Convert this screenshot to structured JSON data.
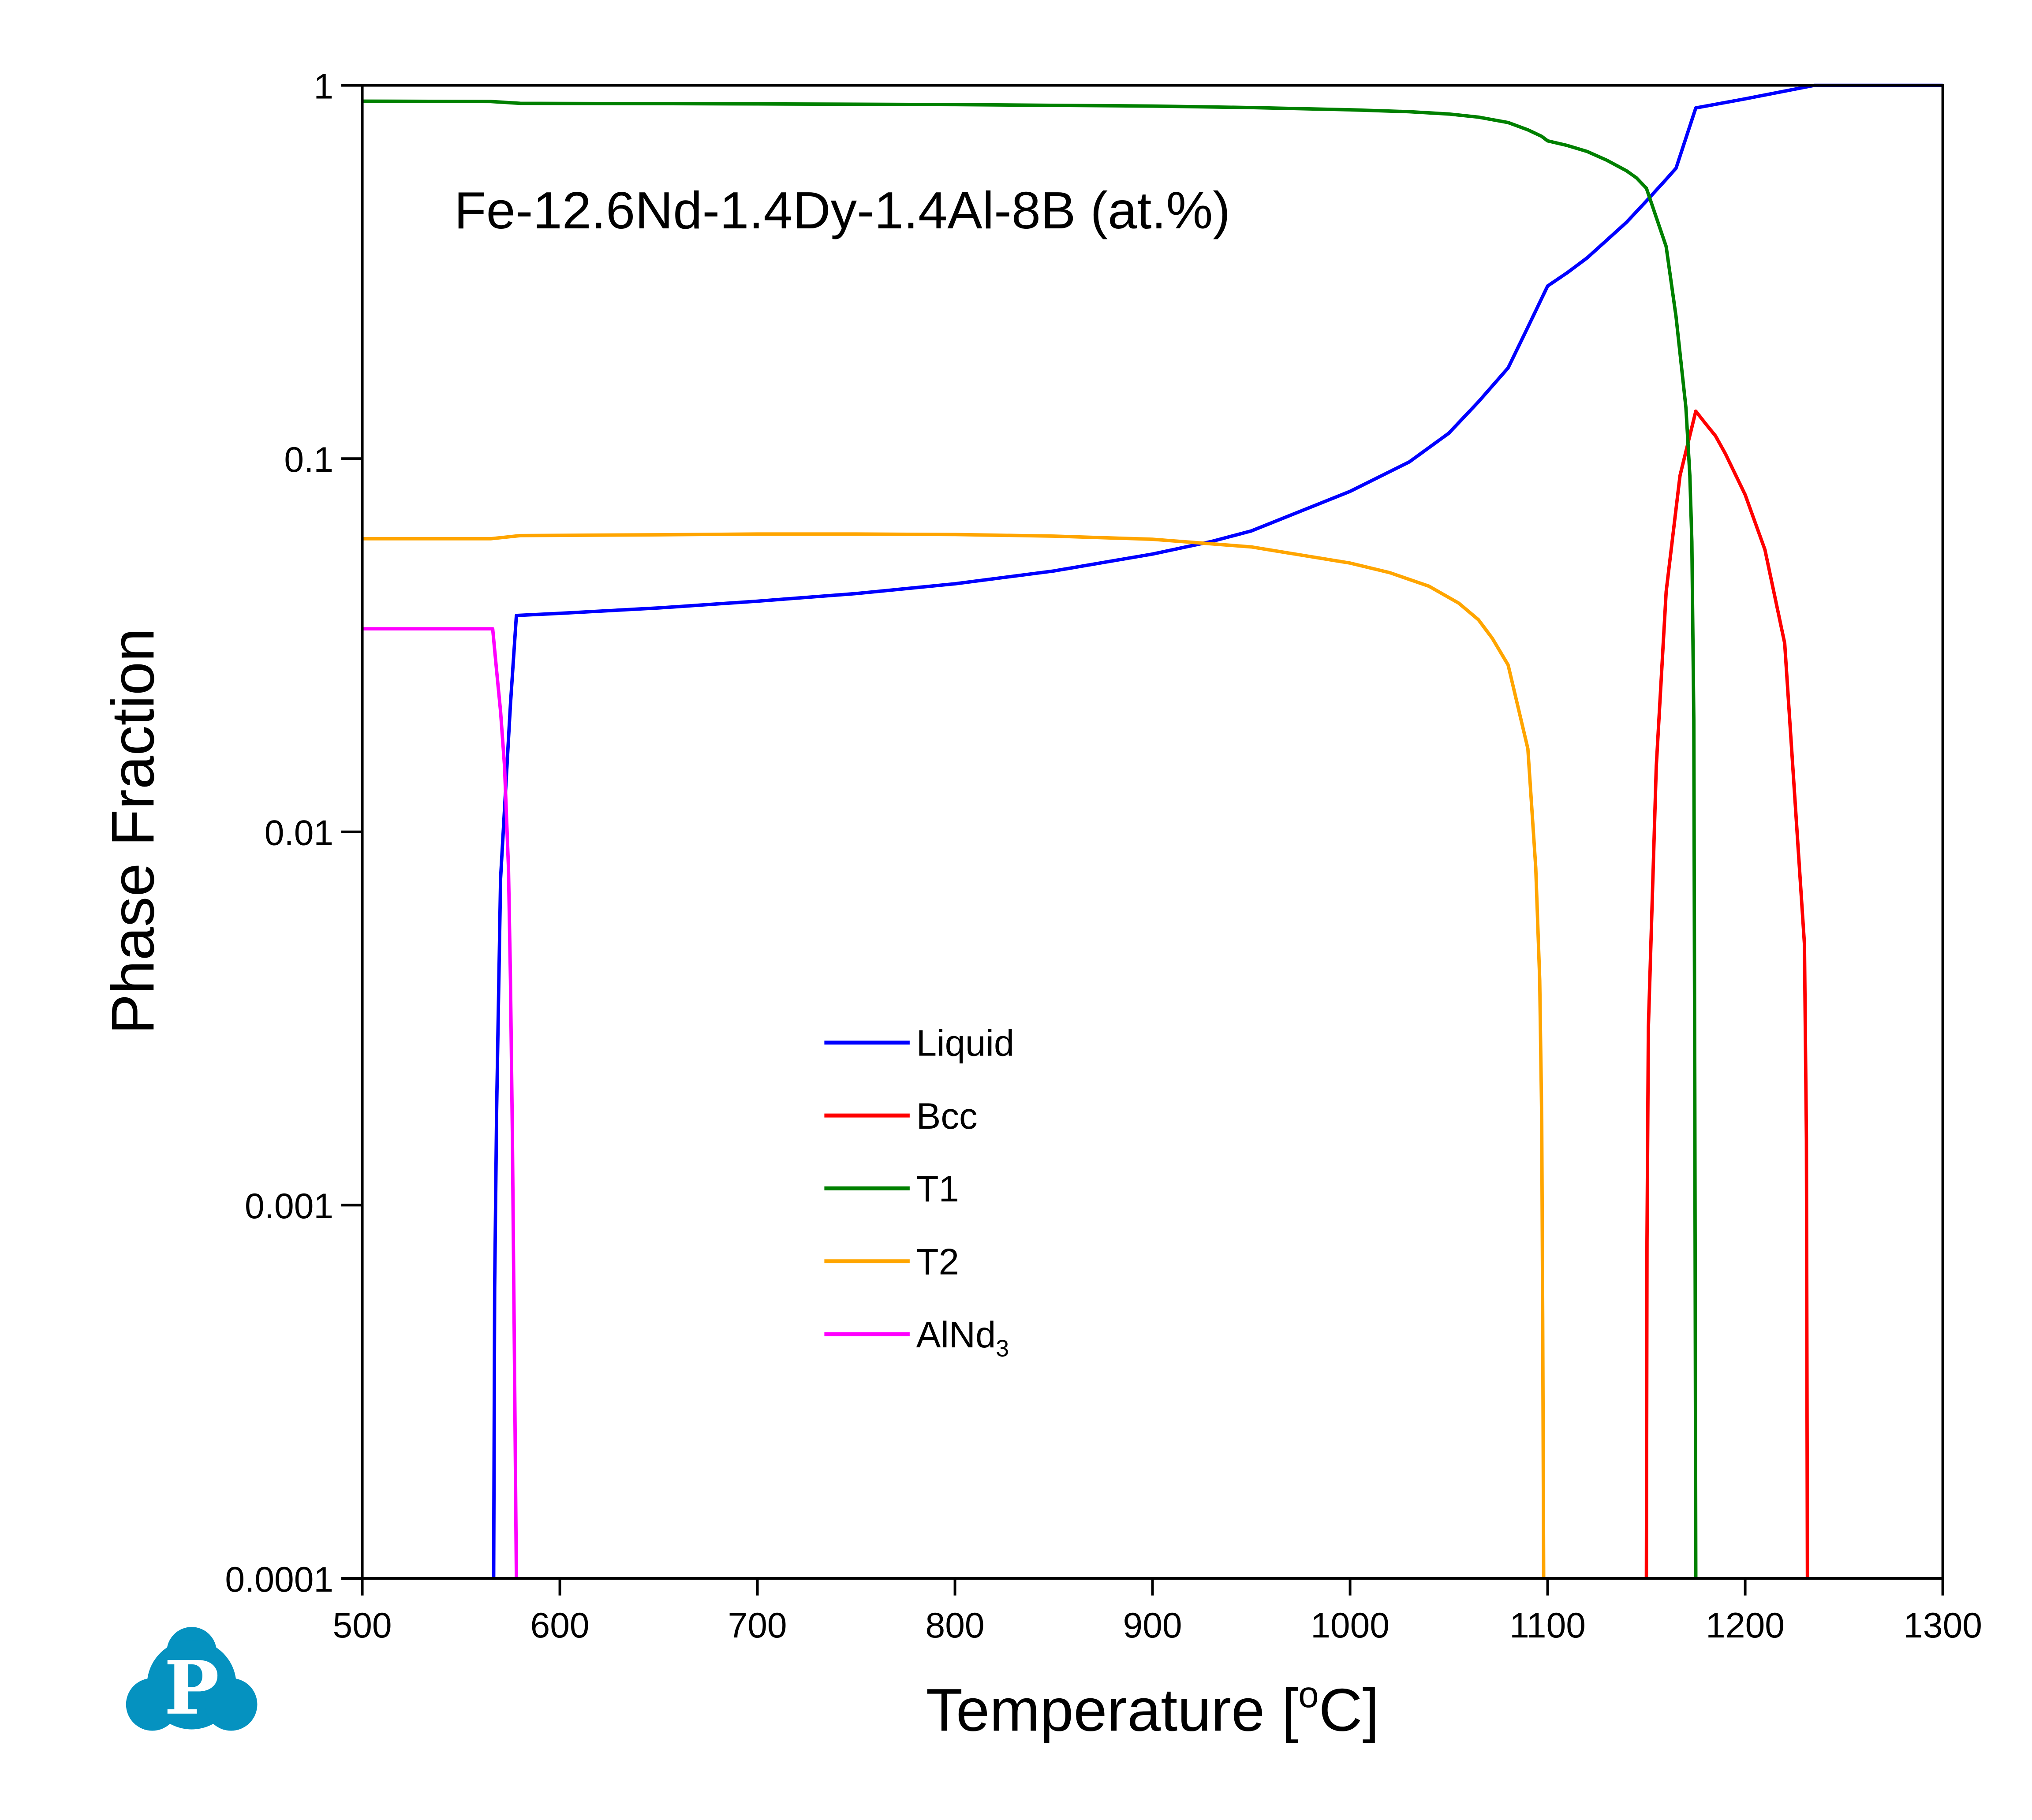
{
  "chart_data": {
    "type": "line",
    "title": "",
    "annotation": "Fe-12.6Nd-1.4Dy-1.4Al-8B (at.%)",
    "xlabel": "Temperature [oC]",
    "xlabel_parts": {
      "pre": "Temperature [",
      "sup": "o",
      "post": "C]"
    },
    "ylabel": "Phase Fraction",
    "xlim": [
      500,
      1300
    ],
    "ylim": [
      0.0001,
      1
    ],
    "yscale": "log",
    "grid": false,
    "legend_position": "center-left",
    "x_ticks": [
      {
        "value": 500,
        "label": "500"
      },
      {
        "value": 600,
        "label": "600"
      },
      {
        "value": 700,
        "label": "700"
      },
      {
        "value": 800,
        "label": "800"
      },
      {
        "value": 900,
        "label": "900"
      },
      {
        "value": 1000,
        "label": "1000"
      },
      {
        "value": 1100,
        "label": "1100"
      },
      {
        "value": 1200,
        "label": "1200"
      },
      {
        "value": 1300,
        "label": "1300"
      }
    ],
    "y_ticks": [
      {
        "value": 1,
        "label": "1"
      },
      {
        "value": 0.1,
        "label": "0.1"
      },
      {
        "value": 0.01,
        "label": "0.01"
      },
      {
        "value": 0.001,
        "label": "0.001"
      },
      {
        "value": 0.0001,
        "label": "0.0001"
      }
    ],
    "series": [
      {
        "name": "Liquid",
        "label_main": "Liquid",
        "label_sub": "",
        "color": "#0000ff",
        "x": [
          566.5,
          567,
          568,
          570,
          575,
          578,
          600,
          650,
          700,
          750,
          800,
          850,
          900,
          930,
          950,
          1000,
          1030,
          1050,
          1065,
          1080,
          1090,
          1100,
          1110,
          1120,
          1130,
          1140,
          1150,
          1160,
          1165,
          1175,
          1200,
          1220,
          1235,
          1260,
          1300
        ],
        "y": [
          0.0001,
          0.0006,
          0.0018,
          0.0075,
          0.022,
          0.038,
          0.0385,
          0.0398,
          0.0415,
          0.0435,
          0.0462,
          0.05,
          0.0555,
          0.06,
          0.064,
          0.0817,
          0.098,
          0.117,
          0.142,
          0.175,
          0.225,
          0.29,
          0.315,
          0.345,
          0.385,
          0.43,
          0.49,
          0.56,
          0.6,
          0.87,
          0.92,
          0.965,
          1.0,
          1.0,
          1.0
        ]
      },
      {
        "name": "Bcc",
        "label_main": "Bcc",
        "label_sub": "",
        "color": "#ff0000",
        "x": [
          1150,
          1150.3,
          1151,
          1155,
          1160,
          1167,
          1175,
          1180,
          1185,
          1190,
          1200,
          1210,
          1220,
          1230,
          1231,
          1231.5
        ],
        "y": [
          0.0001,
          0.0008,
          0.003,
          0.015,
          0.044,
          0.09,
          0.134,
          0.124,
          0.115,
          0.103,
          0.08,
          0.057,
          0.032,
          0.005,
          0.0015,
          0.0001
        ]
      },
      {
        "name": "T1",
        "label_main": "T1",
        "label_sub": "",
        "color": "#008000",
        "x": [
          500,
          565,
          580,
          700,
          800,
          900,
          950,
          1000,
          1030,
          1050,
          1065,
          1080,
          1090,
          1097,
          1100,
          1110,
          1120,
          1130,
          1140,
          1145,
          1150,
          1160,
          1165,
          1170,
          1172,
          1173,
          1174,
          1174.5,
          1175
        ],
        "y": [
          0.907,
          0.905,
          0.895,
          0.892,
          0.888,
          0.88,
          0.872,
          0.86,
          0.85,
          0.838,
          0.822,
          0.795,
          0.76,
          0.73,
          0.71,
          0.69,
          0.665,
          0.63,
          0.59,
          0.565,
          0.53,
          0.37,
          0.24,
          0.137,
          0.09,
          0.06,
          0.02,
          0.002,
          0.0001
        ]
      },
      {
        "name": "T2",
        "label_main": "T2",
        "label_sub": "",
        "color": "#ffa500",
        "x": [
          500,
          565,
          580,
          650,
          700,
          750,
          800,
          850,
          900,
          950,
          1000,
          1020,
          1040,
          1055,
          1065,
          1072,
          1080,
          1090,
          1094,
          1096,
          1097,
          1097.5,
          1098
        ],
        "y": [
          0.061,
          0.061,
          0.0622,
          0.0625,
          0.0628,
          0.0628,
          0.0626,
          0.062,
          0.0608,
          0.058,
          0.0525,
          0.0495,
          0.0455,
          0.041,
          0.037,
          0.033,
          0.028,
          0.0167,
          0.008,
          0.004,
          0.0017,
          0.0005,
          0.0001
        ]
      },
      {
        "name": "AlNd3",
        "label_main": "AlNd",
        "label_sub": "3",
        "color": "#ff00ff",
        "x": [
          500,
          566,
          568,
          570,
          572,
          574,
          575,
          576,
          577,
          578
        ],
        "y": [
          0.035,
          0.035,
          0.027,
          0.021,
          0.015,
          0.008,
          0.004,
          0.0015,
          0.0004,
          0.0001
        ]
      }
    ]
  },
  "logo": {
    "letter": "P",
    "color": "#0592c0"
  }
}
